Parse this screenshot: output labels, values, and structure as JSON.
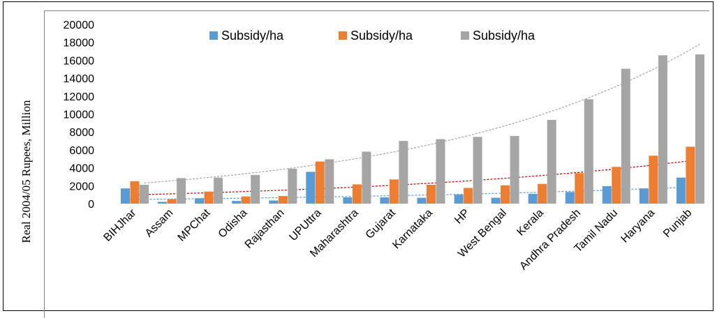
{
  "chart_data": {
    "type": "bar",
    "title": "",
    "ylabel": "Real 2004/05 Rupees, Million",
    "xlabel": "",
    "ylim": [
      0,
      20000
    ],
    "yticks": [
      0,
      2000,
      4000,
      6000,
      8000,
      10000,
      12000,
      14000,
      16000,
      18000,
      20000
    ],
    "grid": false,
    "legend_position": "top",
    "categories": [
      "BIHJhar",
      "Assam",
      "MPChat",
      "Odisha",
      "Rajasthan",
      "UPUttra",
      "Maharashtra",
      "Gujarat",
      "Karnataka",
      "HP",
      "West Bengal",
      "Kerala",
      "Andhra Pradesh",
      "Tamil Nadu",
      "Haryana",
      "Punjab"
    ],
    "series": [
      {
        "name": "Subsidy/ha",
        "color": "#5b9bd5",
        "values": [
          1700,
          200,
          600,
          300,
          350,
          3550,
          700,
          700,
          650,
          1000,
          650,
          1100,
          1300,
          1950,
          1700,
          2900
        ]
      },
      {
        "name": "Subsidy/ha",
        "color": "#ed7d31",
        "values": [
          2500,
          500,
          1350,
          800,
          850,
          4700,
          2150,
          2700,
          2100,
          1750,
          2050,
          2200,
          3400,
          4100,
          5350,
          6350
        ]
      },
      {
        "name": "Subsidy/ha",
        "color": "#a5a5a5",
        "values": [
          2100,
          2850,
          2900,
          3200,
          3900,
          4950,
          5800,
          7000,
          7200,
          7450,
          7550,
          9350,
          11650,
          15050,
          16550,
          16650
        ]
      }
    ],
    "trendlines": [
      {
        "type": "exponential",
        "series_index": 0,
        "color": "#5b9bd5",
        "style": "dashed"
      },
      {
        "type": "exponential",
        "series_index": 1,
        "color": "#c00000",
        "style": "dashed"
      },
      {
        "type": "exponential",
        "series_index": 2,
        "color": "#a5a5a5",
        "style": "dashed"
      }
    ]
  }
}
